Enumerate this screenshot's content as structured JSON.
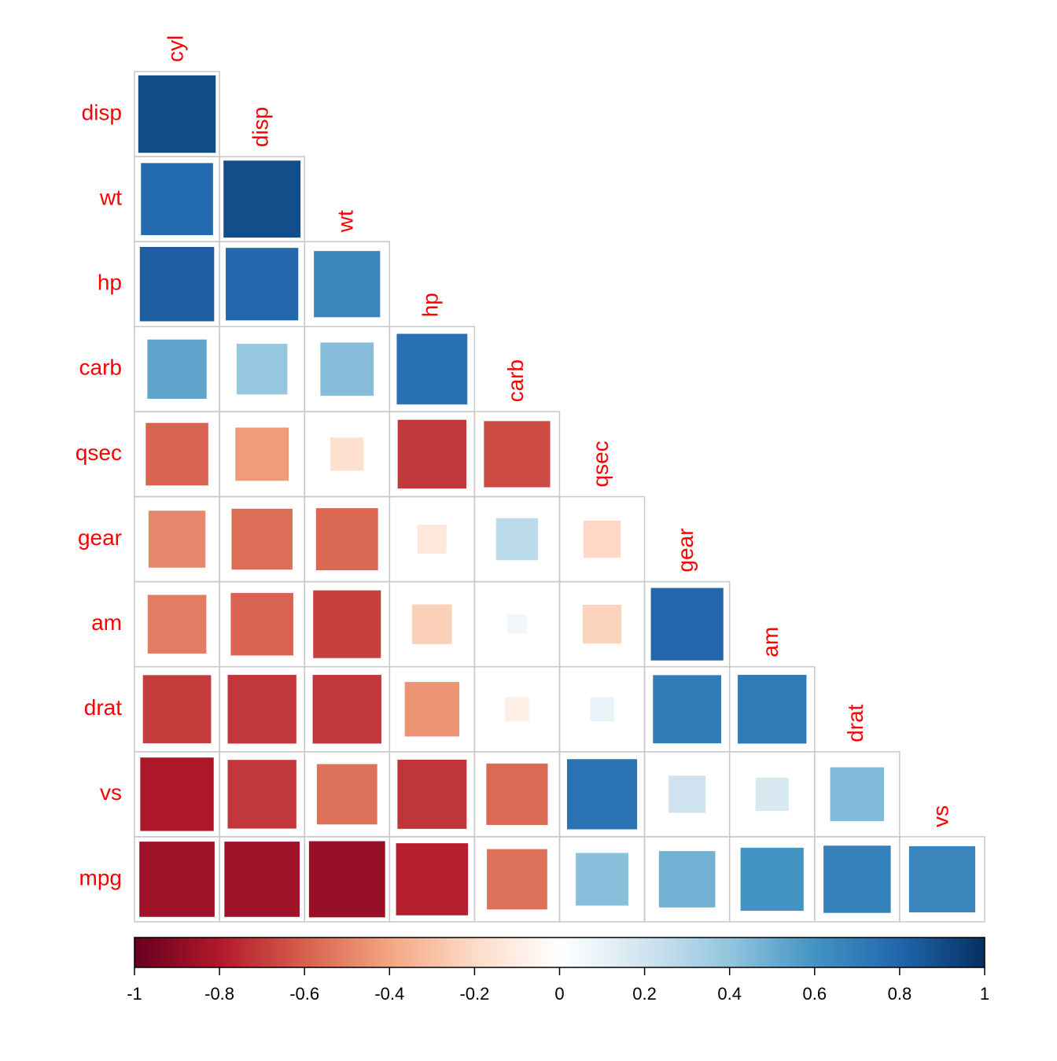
{
  "chart_data": {
    "type": "corrplot",
    "row_labels": [
      "disp",
      "wt",
      "hp",
      "carb",
      "qsec",
      "gear",
      "am",
      "drat",
      "vs",
      "mpg"
    ],
    "column_labels": [
      "cyl",
      "disp",
      "wt",
      "hp",
      "carb",
      "qsec",
      "gear",
      "am",
      "drat",
      "vs"
    ],
    "values": [
      [
        0.9,
        null,
        null,
        null,
        null,
        null,
        null,
        null,
        null,
        null
      ],
      [
        0.78,
        0.89,
        null,
        null,
        null,
        null,
        null,
        null,
        null,
        null
      ],
      [
        0.83,
        0.79,
        0.66,
        null,
        null,
        null,
        null,
        null,
        null,
        null
      ],
      [
        0.53,
        0.39,
        0.43,
        0.75,
        null,
        null,
        null,
        null,
        null,
        null
      ],
      [
        -0.59,
        -0.43,
        -0.17,
        -0.71,
        -0.66,
        null,
        null,
        null,
        null,
        null
      ],
      [
        -0.49,
        -0.56,
        -0.58,
        -0.13,
        0.27,
        -0.21,
        null,
        null,
        null,
        null
      ],
      [
        -0.52,
        -0.59,
        -0.69,
        -0.24,
        0.06,
        -0.23,
        0.79,
        null,
        null,
        null
      ],
      [
        -0.7,
        -0.71,
        -0.71,
        -0.45,
        -0.09,
        0.09,
        0.7,
        0.71,
        null,
        null
      ],
      [
        -0.81,
        -0.71,
        -0.55,
        -0.72,
        -0.57,
        0.74,
        0.21,
        0.17,
        0.44,
        null
      ],
      [
        -0.85,
        -0.85,
        -0.87,
        -0.78,
        -0.55,
        0.42,
        0.48,
        0.6,
        0.68,
        0.66
      ]
    ],
    "label_color": "#ff0000",
    "colormap": [
      "#67001F",
      "#B2182B",
      "#D6604D",
      "#F4A582",
      "#FDDBC7",
      "#FFFFFF",
      "#D1E5F0",
      "#92C5DE",
      "#4393C3",
      "#2166AC",
      "#053061"
    ],
    "clim": [
      -1,
      1
    ],
    "cticks": [
      -1,
      -0.8,
      -0.6,
      -0.4,
      -0.2,
      0,
      0.2,
      0.4,
      0.6,
      0.8,
      1
    ]
  }
}
